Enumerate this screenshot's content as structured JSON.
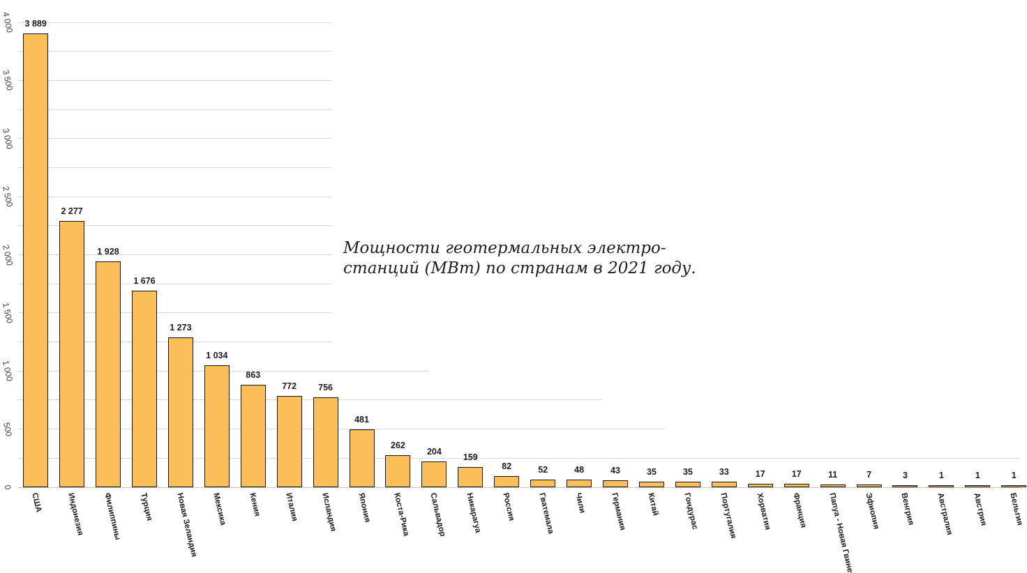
{
  "chart_data": {
    "type": "bar",
    "title": "Мощности геотермальных электро-станций (МВт) по странам в 2021 году.",
    "title_lines": [
      "Мощности геотермальных электро-",
      "станций (МВт) по странам в 2021 году."
    ],
    "xlabel": "",
    "ylabel": "",
    "ylim": [
      0,
      4000
    ],
    "gridline_step": 250,
    "y_major_ticks": [
      0,
      500,
      1000,
      1500,
      2000,
      2500,
      3000,
      3500,
      4000
    ],
    "y_tick_labels": [
      "0",
      "500",
      "1 000",
      "1 500",
      "2 000",
      "2 500",
      "3 000",
      "3 500",
      "4 000"
    ],
    "legend": "none",
    "grid": "horizontal-partial",
    "bar_color": "#FBBE58",
    "bar_border_color": "#141414",
    "gridline_color": "#D7D7D7",
    "categories": [
      "США",
      "Индонезия",
      "Филиппины",
      "Турция",
      "Новая Зеландия",
      "Мексика",
      "Кения",
      "Италия",
      "Исландия",
      "Япония",
      "Коста-Рика",
      "Сальвадор",
      "Никарагуа",
      "Россия",
      "Гватемала",
      "Чили",
      "Германия",
      "Китай",
      "Гондурас",
      "Португалия",
      "Хорватия",
      "Франция",
      "Папуа - Новая Гвинея",
      "Эфиопия",
      "Венгрия",
      "Австралия",
      "Австрия",
      "Бельгия"
    ],
    "values": [
      3889,
      2277,
      1928,
      1676,
      1273,
      1034,
      863,
      772,
      756,
      481,
      262,
      204,
      159,
      82,
      52,
      48,
      43,
      35,
      35,
      33,
      17,
      17,
      11,
      7,
      3,
      1,
      1,
      1
    ],
    "value_labels": [
      "3 889",
      "2 277",
      "1 928",
      "1 676",
      "1 273",
      "1 034",
      "863",
      "772",
      "756",
      "481",
      "262",
      "204",
      "159",
      "82",
      "52",
      "48",
      "43",
      "35",
      "35",
      "33",
      "17",
      "17",
      "11",
      "7",
      "3",
      "1",
      "1",
      "1"
    ]
  }
}
